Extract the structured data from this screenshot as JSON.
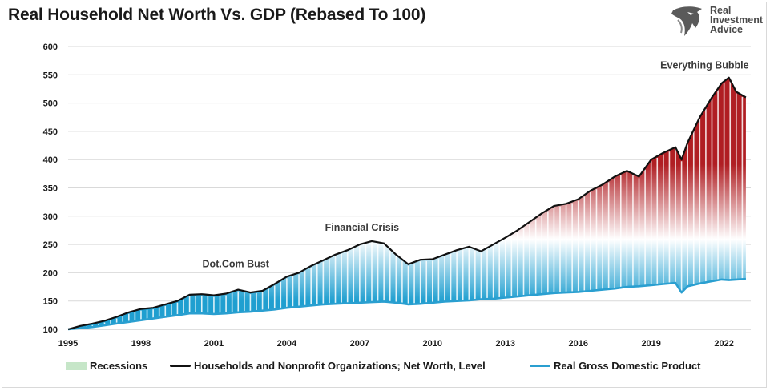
{
  "title": "Real Household Net Worth Vs. GDP (Rebased To 100)",
  "logo": {
    "lines": [
      "Real",
      "Investment",
      "Advice"
    ],
    "icon": "eagle-head-icon"
  },
  "colors": {
    "networth_line": "#111111",
    "gdp_line": "#2a9fd0",
    "fill_top": "#b01e23",
    "fill_mid": "#ffffff",
    "fill_bottom": "#1f9fd0",
    "recession": "#c6e6c8",
    "gridline": "#d9d9d9"
  },
  "legend": [
    {
      "label": "Recessions",
      "kind": "box",
      "color": "#c6e6c8"
    },
    {
      "label": "Households and Nonprofit Organizations; Net Worth, Level",
      "kind": "line",
      "color": "#111111"
    },
    {
      "label": "Real Gross Domestic Product",
      "kind": "line",
      "color": "#2a9fd0"
    }
  ],
  "chart_data": {
    "type": "area",
    "title": "Real Household Net Worth Vs. GDP (Rebased To 100)",
    "xlabel": "",
    "ylabel": "",
    "xlim": [
      1995,
      2023.1
    ],
    "ylim": [
      100,
      600
    ],
    "yticks": [
      100,
      150,
      200,
      250,
      300,
      350,
      400,
      450,
      500,
      550,
      600
    ],
    "xticks": [
      1995,
      1998,
      2001,
      2004,
      2007,
      2010,
      2013,
      2016,
      2019,
      2022
    ],
    "grid": "horizontal",
    "legend_position": "bottom",
    "annotations": [
      {
        "text": "Dot.Com Bust",
        "x": 2001.9,
        "y": 210
      },
      {
        "text": "Financial Crisis",
        "x": 2007.1,
        "y": 274
      },
      {
        "text": "Everything Bubble",
        "x": 2021.2,
        "y": 561
      }
    ],
    "x": [
      1995,
      1995.5,
      1996,
      1996.5,
      1997,
      1997.5,
      1998,
      1998.5,
      1999,
      1999.5,
      2000,
      2000.5,
      2001,
      2001.5,
      2002,
      2002.5,
      2003,
      2003.5,
      2004,
      2004.5,
      2005,
      2005.5,
      2006,
      2006.5,
      2007,
      2007.5,
      2008,
      2008.5,
      2009,
      2009.5,
      2010,
      2010.5,
      2011,
      2011.5,
      2012,
      2012.5,
      2013,
      2013.5,
      2014,
      2014.5,
      2015,
      2015.5,
      2016,
      2016.5,
      2017,
      2017.5,
      2018,
      2018.5,
      2019,
      2019.5,
      2020,
      2020.25,
      2020.5,
      2021,
      2021.5,
      2021.9,
      2022.2,
      2022.5,
      2022.9
    ],
    "series": [
      {
        "name": "Households and Nonprofit Organizations; Net Worth, Level",
        "values": [
          100,
          106,
          110,
          115,
          122,
          130,
          136,
          138,
          144,
          150,
          161,
          162,
          160,
          163,
          170,
          165,
          168,
          180,
          193,
          200,
          212,
          222,
          232,
          240,
          250,
          256,
          252,
          232,
          215,
          223,
          224,
          232,
          240,
          246,
          238,
          250,
          262,
          275,
          290,
          305,
          318,
          322,
          330,
          345,
          356,
          370,
          380,
          370,
          400,
          412,
          422,
          400,
          430,
          475,
          510,
          535,
          545,
          520,
          510
        ]
      },
      {
        "name": "Real Gross Domestic Product",
        "values": [
          100,
          102,
          104,
          107,
          110,
          113,
          116,
          119,
          122,
          125,
          128,
          128,
          127,
          128,
          130,
          131,
          133,
          135,
          138,
          140,
          142,
          144,
          145,
          146,
          147,
          148,
          149,
          147,
          144,
          145,
          147,
          149,
          150,
          151,
          153,
          154,
          156,
          158,
          160,
          162,
          164,
          165,
          166,
          168,
          170,
          172,
          175,
          176,
          178,
          180,
          182,
          165,
          176,
          181,
          185,
          188,
          187,
          188,
          189
        ]
      }
    ]
  }
}
